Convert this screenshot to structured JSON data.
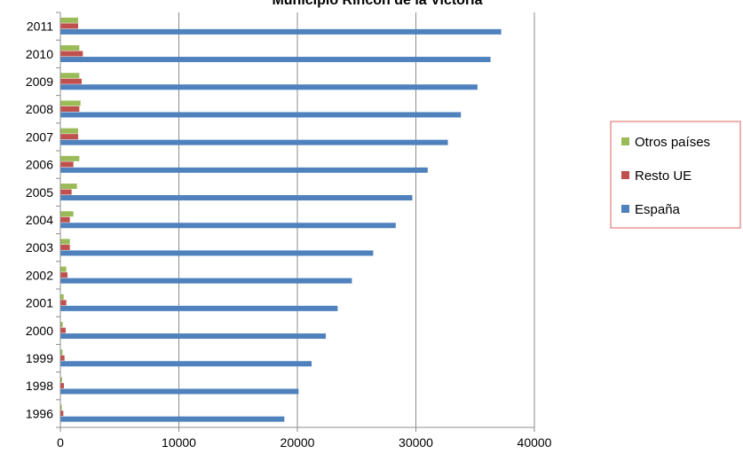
{
  "chart_data": {
    "type": "bar",
    "orientation": "horizontal",
    "title": "Municipio Rincón de la Victoria",
    "categories": [
      "1996",
      "1998",
      "1999",
      "2000",
      "2001",
      "2002",
      "2003",
      "2004",
      "2005",
      "2006",
      "2007",
      "2008",
      "2009",
      "2010",
      "2011"
    ],
    "series": [
      {
        "name": "España",
        "color": "#4F81BD",
        "values": [
          18900,
          20100,
          21200,
          22400,
          23400,
          24600,
          26400,
          28300,
          29700,
          31000,
          32700,
          33800,
          35200,
          36300,
          37200
        ]
      },
      {
        "name": "Resto UE",
        "color": "#C0504D",
        "values": [
          250,
          300,
          350,
          450,
          500,
          600,
          800,
          800,
          950,
          1100,
          1500,
          1600,
          1800,
          1900,
          1500
        ]
      },
      {
        "name": "Otros países",
        "color": "#9BBB59",
        "values": [
          120,
          150,
          180,
          200,
          280,
          500,
          800,
          1100,
          1400,
          1600,
          1500,
          1700,
          1600,
          1600,
          1500
        ]
      }
    ],
    "xlim": [
      0,
      40000
    ],
    "xticks": [
      "0",
      "10000",
      "20000",
      "30000",
      "40000"
    ],
    "grid": true,
    "legend_position": "right",
    "legend_border_color": "#E06060"
  }
}
